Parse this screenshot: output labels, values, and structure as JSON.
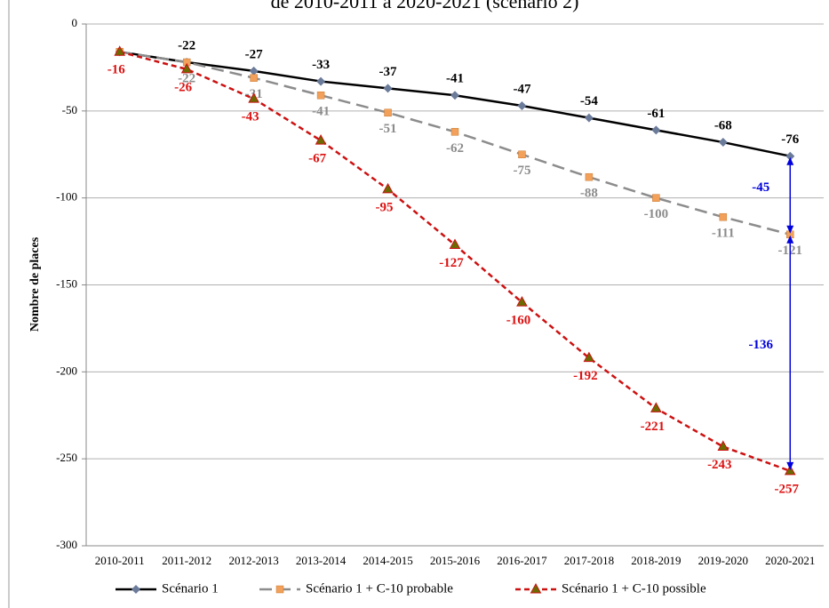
{
  "chart_data": {
    "type": "line",
    "title": "de 2010-2011 à 2020-2021 (scénario 2)",
    "y_label": "Nombre de places",
    "categories": [
      "2010-2011",
      "2011-2012",
      "2012-2013",
      "2013-2014",
      "2014-2015",
      "2015-2016",
      "2016-2017",
      "2017-2018",
      "2018-2019",
      "2019-2020",
      "2020-2021"
    ],
    "ylim": [
      -300,
      0
    ],
    "yticks": [
      -300,
      -250,
      -200,
      -150,
      -100,
      -50,
      0
    ],
    "grid": true,
    "legend": "bottom",
    "series": [
      {
        "name": "Scénario 1",
        "color": "#000000",
        "label_color": "#000000",
        "marker": "diamond",
        "marker_color": "#6b7b9a",
        "dash": "none",
        "values": [
          -16,
          -22,
          -27,
          -33,
          -37,
          -41,
          -47,
          -54,
          -61,
          -68,
          -76
        ],
        "value_labels": [
          null,
          "-22",
          "-27",
          "-33",
          "-37",
          "-41",
          "-47",
          "-54",
          "-61",
          "-68",
          "-76"
        ]
      },
      {
        "name": "Scénario 1 + C-10 probable",
        "color": "#8c8c8c",
        "label_color": "#8c8c8c",
        "marker": "square",
        "marker_color": "#f2a05a",
        "dash": "14 7",
        "values": [
          -16,
          -22,
          -31,
          -41,
          -51,
          -62,
          -75,
          -88,
          -100,
          -111,
          -121
        ],
        "value_labels": [
          null,
          "-22",
          "-31",
          "-41",
          "-51",
          "-62",
          "-75",
          "-88",
          "-100",
          "-111",
          "-121"
        ]
      },
      {
        "name": "Scénario 1 + C-10 possible",
        "color": "#cc1111",
        "label_color": "#dd1111",
        "marker": "triangle",
        "marker_color": "#6b6b00",
        "dash": "6 4",
        "values": [
          -16,
          -26,
          -43,
          -67,
          -95,
          -127,
          -160,
          -192,
          -221,
          -243,
          -257
        ],
        "value_labels": [
          "-16",
          "-26",
          "-43",
          "-67",
          "-95",
          "-127",
          "-160",
          "-192",
          "-221",
          "-243",
          "-257"
        ]
      }
    ],
    "annotations": [
      {
        "value": -45,
        "from_series": 0,
        "to_series": 1,
        "color": "#0000dd"
      },
      {
        "value": -136,
        "from_series": 1,
        "to_series": 2,
        "color": "#0000dd"
      }
    ]
  }
}
